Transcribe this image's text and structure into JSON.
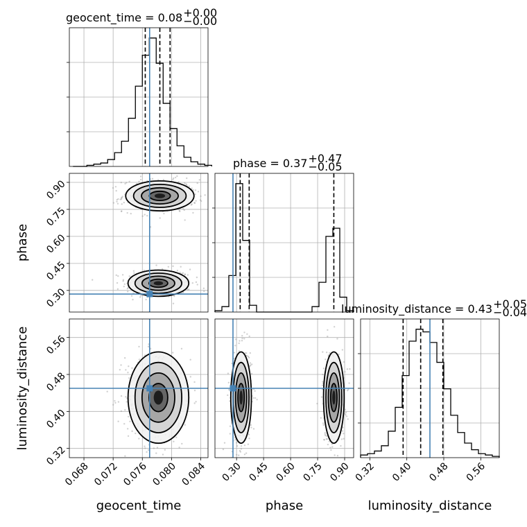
{
  "chart_data": {
    "type": "corner",
    "parameters": [
      "geocent_time",
      "phase",
      "luminosity_distance"
    ],
    "titles": [
      {
        "param": "geocent_time",
        "text": "geocent_time = 0.08",
        "sup": "+0.00",
        "sub": "−0.00"
      },
      {
        "param": "phase",
        "text": "phase = 0.37",
        "sup": "+0.47",
        "sub": "−0.05"
      },
      {
        "param": "luminosity_distance",
        "text": "luminosity_distance = 0.43",
        "sup": "+0.05",
        "sub": "−0.04"
      }
    ],
    "ranges": {
      "geocent_time": [
        0.066,
        0.085
      ],
      "phase": [
        0.18,
        0.95
      ],
      "luminosity_distance": [
        0.3,
        0.6
      ]
    },
    "ticks": {
      "geocent_time": [
        "0.068",
        "0.072",
        "0.076",
        "0.080",
        "0.084"
      ],
      "phase": [
        "0.30",
        "0.45",
        "0.60",
        "0.75",
        "0.90"
      ],
      "luminosity_distance": [
        "0.32",
        "0.40",
        "0.48",
        "0.56"
      ]
    },
    "truths": {
      "geocent_time": 0.077,
      "phase": 0.28,
      "luminosity_distance": 0.45
    },
    "quantiles": {
      "geocent_time": [
        0.0764,
        0.0784,
        0.0798
      ],
      "phase": [
        0.32,
        0.37,
        0.84
      ],
      "luminosity_distance": [
        0.392,
        0.43,
        0.478
      ]
    },
    "histograms": {
      "geocent_time": {
        "x0": 0.0665,
        "dx": 0.00095,
        "counts": [
          0,
          0,
          1,
          2,
          3,
          6,
          12,
          22,
          42,
          70,
          97,
          112,
          90,
          55,
          33,
          18,
          8,
          4,
          2,
          1
        ]
      },
      "phase": {
        "x0": 0.18,
        "dx": 0.0385,
        "counts": [
          1,
          4,
          27,
          95,
          53,
          5,
          0,
          0,
          0,
          0,
          0,
          0,
          0,
          0,
          4,
          22,
          56,
          62,
          11,
          1
        ]
      },
      "luminosity_distance": {
        "x0": 0.3,
        "dx": 0.015,
        "counts": [
          2,
          3,
          5,
          9,
          20,
          38,
          62,
          88,
          97,
          95,
          87,
          72,
          52,
          32,
          19,
          11,
          6,
          3,
          2,
          1
        ]
      }
    },
    "joint_modes": {
      "phase_vs_geocent_time": [
        {
          "cx": 0.0782,
          "cy": 0.34,
          "sx": 0.0016,
          "sy": 0.028
        },
        {
          "cx": 0.0784,
          "cy": 0.825,
          "sx": 0.0018,
          "sy": 0.032
        }
      ],
      "luminosity_distance_vs_geocent_time": [
        {
          "cx": 0.0782,
          "cy": 0.43,
          "sx": 0.0016,
          "sy": 0.038
        }
      ],
      "luminosity_distance_vs_phase": [
        {
          "cx": 0.325,
          "cy": 0.43,
          "sx": 0.022,
          "sy": 0.038
        },
        {
          "cx": 0.84,
          "cy": 0.43,
          "sx": 0.022,
          "sy": 0.038
        }
      ]
    },
    "xlabels": [
      "geocent_time",
      "phase",
      "luminosity_distance"
    ],
    "ylabels": [
      "phase",
      "luminosity_distance"
    ],
    "grid": true,
    "colors": {
      "truth": "#4682b4",
      "line": "#000000"
    }
  }
}
